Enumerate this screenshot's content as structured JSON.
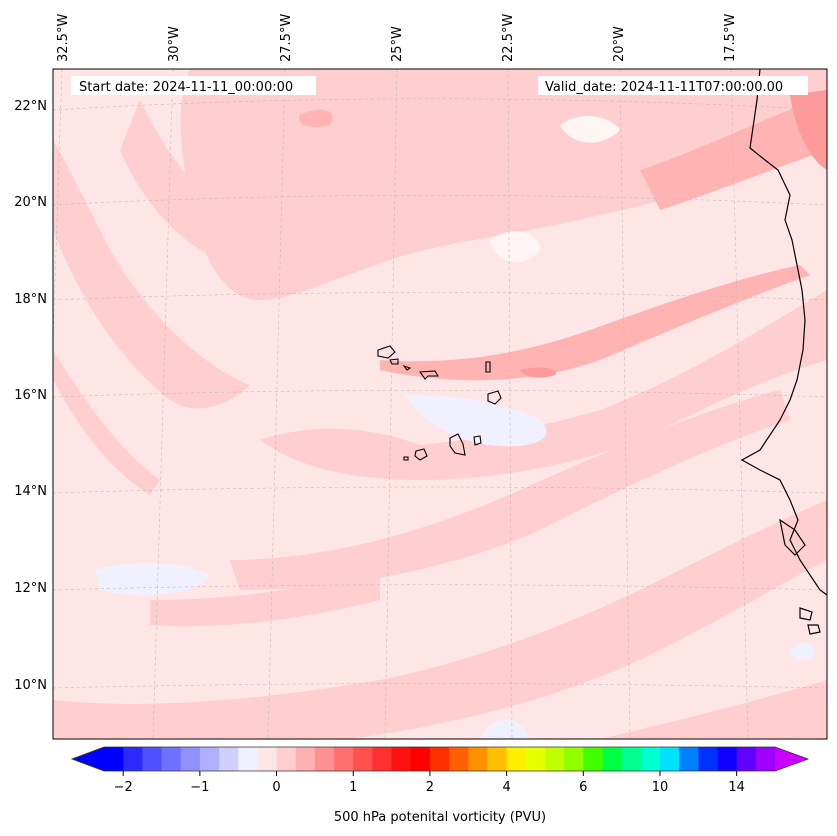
{
  "map": {
    "start_date": "Start date: 2024-11-11_00:00:00",
    "valid_date": "Valid_date: 2024-11-11T07:00:00.00",
    "lon_labels": [
      "32.5°W",
      "30°W",
      "27.5°W",
      "25°W",
      "22.5°W",
      "20°W",
      "17.5°W"
    ],
    "lat_labels": [
      "22°N",
      "20°N",
      "18°N",
      "16°N",
      "14°N",
      "12°N",
      "10°N"
    ],
    "colorbar": {
      "label": "500 hPa potenital vorticity (PVU)",
      "ticks": [
        "−2",
        "−1",
        "0",
        "1",
        "2",
        "4",
        "6",
        "10",
        "14"
      ],
      "colors": [
        "#0000ff",
        "#2a2aff",
        "#5050ff",
        "#7070ff",
        "#9090ff",
        "#b0b0ff",
        "#d0d0ff",
        "#f0f0ff",
        "#ffe6e6",
        "#ffcfcf",
        "#ffb0b0",
        "#ff9090",
        "#ff7070",
        "#ff5050",
        "#ff3030",
        "#ff1010",
        "#ff0000",
        "#ff3000",
        "#ff6000",
        "#ff9000",
        "#ffc000",
        "#ffee00",
        "#e6ff00",
        "#c0ff00",
        "#90ff00",
        "#40ff00",
        "#00ff40",
        "#00ff90",
        "#00ffd0",
        "#00e0ff",
        "#0080ff",
        "#0030ff",
        "#1000ff",
        "#6000ff",
        "#a000ff"
      ],
      "extend_low_color": "#0000ff",
      "extend_high_color": "#cc00ff"
    },
    "field_colors": {
      "background": "#ffe6e6",
      "band_low": "#ffcfcf",
      "band_mid": "#ffb3b3",
      "band_high": "#ff9a9a",
      "negative": "#f0f0ff",
      "near_zero": "#fff5f5"
    }
  }
}
